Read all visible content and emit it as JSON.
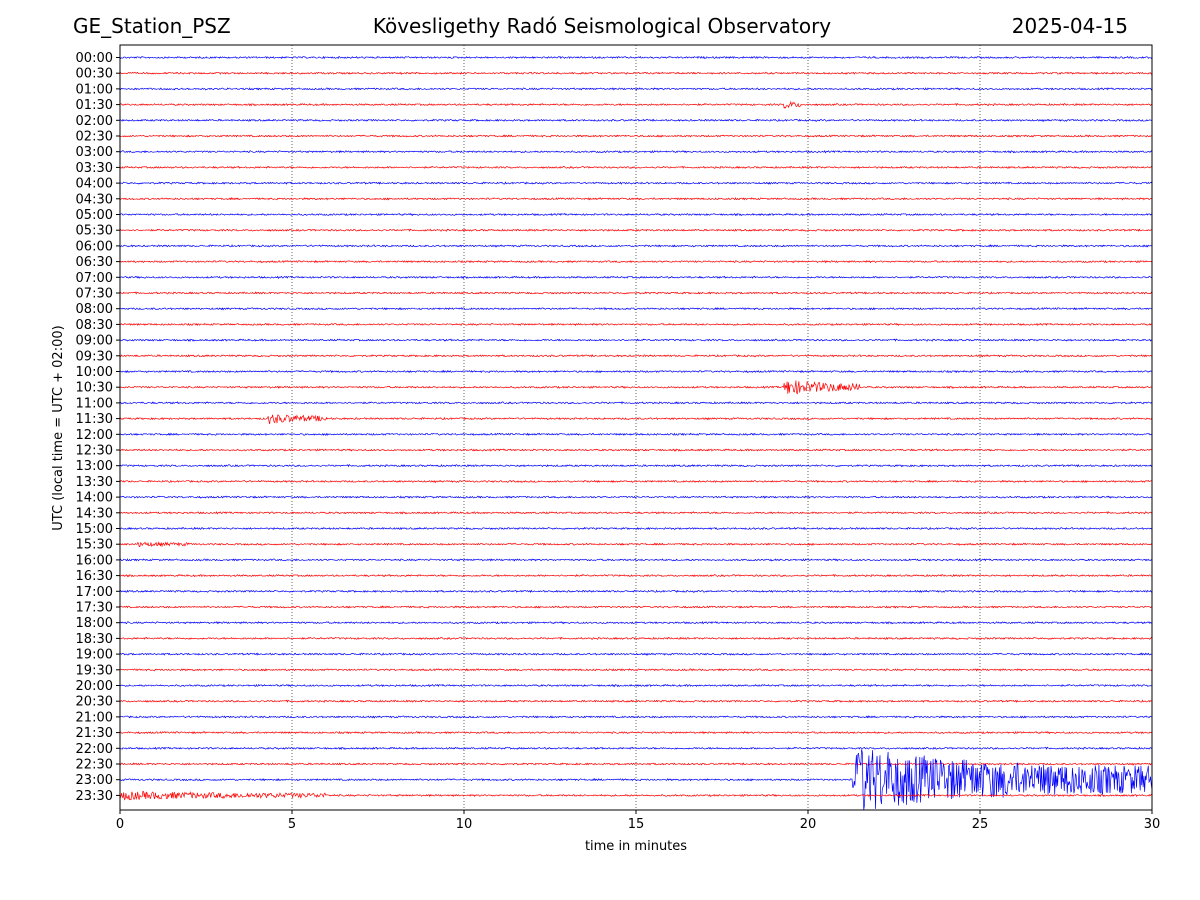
{
  "header": {
    "station": "GE_Station_PSZ",
    "observatory": "Kövesligethy Radó Seismological Observatory",
    "date": "2025-04-15"
  },
  "chart_data": {
    "type": "line",
    "title": "Kövesligethy Radó Seismological Observatory",
    "xlabel": "time in minutes",
    "ylabel": "UTC (local time = UTC + 02:00)",
    "xlim": [
      0,
      30
    ],
    "xticks": [
      0,
      5,
      10,
      15,
      20,
      25,
      30
    ],
    "grid": "vertical dotted lines at 5-minute ticks",
    "trace_colors": [
      "#0000ff",
      "#ff0000"
    ],
    "rows": [
      "00:00",
      "00:30",
      "01:00",
      "01:30",
      "02:00",
      "02:30",
      "03:00",
      "03:30",
      "04:00",
      "04:30",
      "05:00",
      "05:30",
      "06:00",
      "06:30",
      "07:00",
      "07:30",
      "08:00",
      "08:30",
      "09:00",
      "09:30",
      "10:00",
      "10:30",
      "11:00",
      "11:30",
      "12:00",
      "12:30",
      "13:00",
      "13:30",
      "14:00",
      "14:30",
      "15:00",
      "15:30",
      "16:00",
      "16:30",
      "17:00",
      "17:30",
      "18:00",
      "18:30",
      "19:00",
      "19:30",
      "20:00",
      "20:30",
      "21:00",
      "21:30",
      "22:00",
      "22:30",
      "23:00",
      "23:30"
    ],
    "events": [
      {
        "row": "01:30",
        "start_min": 19.3,
        "end_min": 19.8,
        "amplitude": 4
      },
      {
        "row": "10:30",
        "start_min": 19.3,
        "end_min": 21.5,
        "amplitude": 8
      },
      {
        "row": "11:30",
        "start_min": 4.3,
        "end_min": 6.0,
        "amplitude": 5
      },
      {
        "row": "15:30",
        "start_min": 0.5,
        "end_min": 2.0,
        "amplitude": 2
      },
      {
        "row": "23:00",
        "start_min": 21.3,
        "end_min": 30.0,
        "amplitude": 35
      },
      {
        "row": "23:30",
        "start_min": 0.0,
        "end_min": 6.0,
        "amplitude": 4
      }
    ]
  }
}
